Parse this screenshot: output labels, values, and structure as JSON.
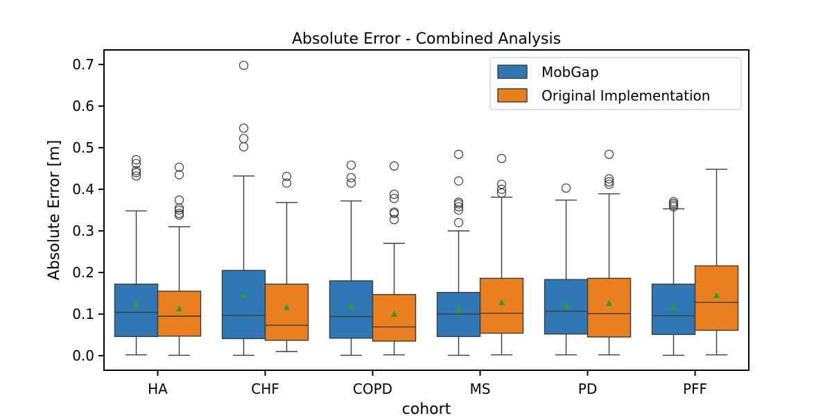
{
  "chart_data": {
    "type": "box",
    "title": "Absolute Error - Combined Analysis",
    "xlabel": "cohort",
    "ylabel": "Absolute Error [m]",
    "ylim": [
      -0.035,
      0.735
    ],
    "yticks": [
      0.0,
      0.1,
      0.2,
      0.3,
      0.4,
      0.5,
      0.6,
      0.7
    ],
    "ytick_labels": [
      "0.0",
      "0.1",
      "0.2",
      "0.3",
      "0.4",
      "0.5",
      "0.6",
      "0.7"
    ],
    "categories": [
      "HA",
      "CHF",
      "COPD",
      "MS",
      "PD",
      "PFF"
    ],
    "legend_position": "top-right",
    "series": [
      {
        "name": "MobGap",
        "color": "#2f78b4",
        "boxes": [
          {
            "whislo": 0.002,
            "q1": 0.046,
            "med": 0.104,
            "q3": 0.172,
            "whishi": 0.348,
            "mean": 0.124,
            "fliers": [
              0.432,
              0.44,
              0.445,
              0.462,
              0.471
            ]
          },
          {
            "whislo": 0.001,
            "q1": 0.041,
            "med": 0.097,
            "q3": 0.205,
            "whishi": 0.432,
            "mean": 0.145,
            "fliers": [
              0.502,
              0.522,
              0.547,
              0.698
            ]
          },
          {
            "whislo": 0.001,
            "q1": 0.042,
            "med": 0.094,
            "q3": 0.18,
            "whishi": 0.372,
            "mean": 0.12,
            "fliers": [
              0.415,
              0.428,
              0.458
            ]
          },
          {
            "whislo": 0.001,
            "q1": 0.046,
            "med": 0.1,
            "q3": 0.152,
            "whishi": 0.3,
            "mean": 0.111,
            "fliers": [
              0.32,
              0.35,
              0.358,
              0.365,
              0.369,
              0.42,
              0.484
            ]
          },
          {
            "whislo": 0.002,
            "q1": 0.052,
            "med": 0.107,
            "q3": 0.183,
            "whishi": 0.374,
            "mean": 0.12,
            "fliers": [
              0.403
            ]
          },
          {
            "whislo": 0.001,
            "q1": 0.051,
            "med": 0.096,
            "q3": 0.172,
            "whishi": 0.353,
            "mean": 0.117,
            "fliers": [
              0.358,
              0.362,
              0.366,
              0.37
            ]
          }
        ]
      },
      {
        "name": "Original Implementation",
        "color": "#e97f1e",
        "boxes": [
          {
            "whislo": 0.001,
            "q1": 0.047,
            "med": 0.095,
            "q3": 0.155,
            "whishi": 0.31,
            "mean": 0.113,
            "fliers": [
              0.338,
              0.342,
              0.35,
              0.355,
              0.374,
              0.435,
              0.453
            ]
          },
          {
            "whislo": 0.01,
            "q1": 0.037,
            "med": 0.073,
            "q3": 0.172,
            "whishi": 0.368,
            "mean": 0.116,
            "fliers": [
              0.415,
              0.431
            ]
          },
          {
            "whislo": 0.002,
            "q1": 0.035,
            "med": 0.069,
            "q3": 0.147,
            "whishi": 0.27,
            "mean": 0.1,
            "fliers": [
              0.327,
              0.342,
              0.345,
              0.378,
              0.388,
              0.456
            ]
          },
          {
            "whislo": 0.002,
            "q1": 0.054,
            "med": 0.102,
            "q3": 0.186,
            "whishi": 0.381,
            "mean": 0.128,
            "fliers": [
              0.391,
              0.4,
              0.412,
              0.474
            ]
          },
          {
            "whislo": 0.002,
            "q1": 0.045,
            "med": 0.101,
            "q3": 0.186,
            "whishi": 0.389,
            "mean": 0.126,
            "fliers": [
              0.412,
              0.418,
              0.425,
              0.484
            ]
          },
          {
            "whislo": 0.002,
            "q1": 0.061,
            "med": 0.128,
            "q3": 0.216,
            "whishi": 0.448,
            "mean": 0.145,
            "fliers": []
          }
        ]
      }
    ],
    "mean_marker_color": "#2ca02c"
  }
}
